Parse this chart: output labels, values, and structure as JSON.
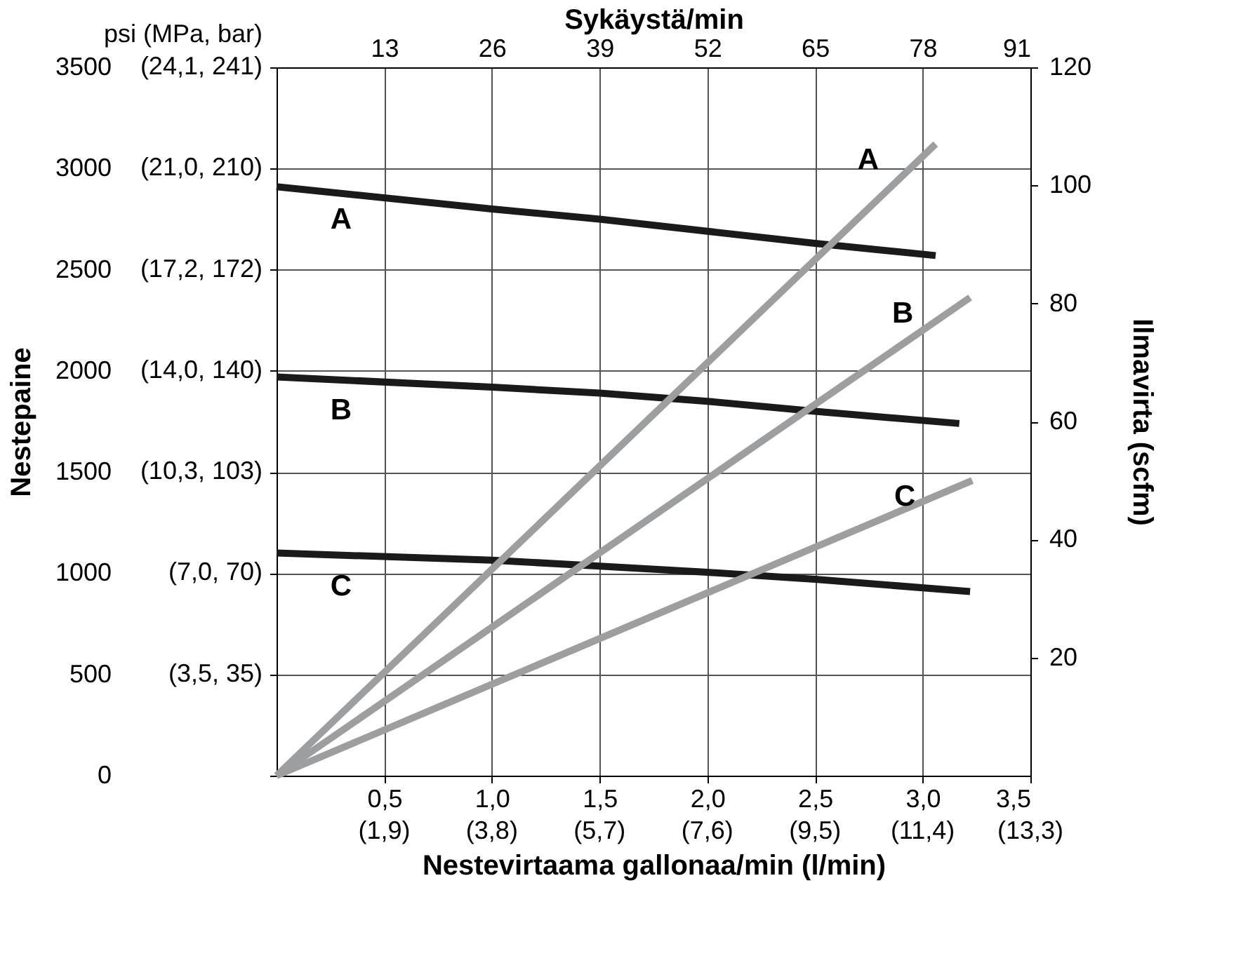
{
  "chart_data": {
    "type": "line",
    "xlabel": "Nestevirtaama gallonaa/min (l/min)",
    "ylabel": "Nestepaine",
    "y2label": "Ilmavirta (scfm)",
    "x2label": "Sykäystä/min",
    "annotations": [
      "psi (MPa, bar)",
      "(3,5, 35)",
      "(7,0, 70)",
      "(10,3, 103)",
      "(14,0, 140)",
      "(17,2, 172)",
      "(21,0, 210)",
      "(24,1, 241)",
      "(1,9)",
      "(3,8)",
      "(5,7)",
      "(7,6)",
      "(9,5)",
      "(11,4)",
      "(13,3)"
    ],
    "xlim": [
      0,
      3.5
    ],
    "xticks": [
      {
        "value": 0.5,
        "label": "0,5"
      },
      {
        "value": 1.0,
        "label": "1,0"
      },
      {
        "value": 1.5,
        "label": "1,5"
      },
      {
        "value": 2.0,
        "label": "2,0"
      },
      {
        "value": 2.5,
        "label": "2,5"
      },
      {
        "value": 3.0,
        "label": "3,0"
      },
      {
        "value": 3.5,
        "label": "3,5"
      }
    ],
    "x2lim": [
      0,
      91
    ],
    "x2ticks": [
      13,
      26,
      39,
      52,
      65,
      78,
      91
    ],
    "ylim": [
      0,
      3500
    ],
    "yticks": [
      0,
      500,
      1000,
      1500,
      2000,
      2500,
      3000,
      3500
    ],
    "y2lim": [
      0,
      120
    ],
    "y2ticks": [
      20,
      40,
      60,
      80,
      100,
      120
    ],
    "grid": true,
    "legend": false,
    "marker": "none",
    "line_style": "solid",
    "series": [
      {
        "name": "A",
        "color": "#1a1a1a",
        "x": [
          0,
          1.0,
          1.5,
          2.0,
          2.5,
          3.06
        ],
        "values": [
          2910,
          2800,
          2750,
          2690,
          2630,
          2570
        ]
      },
      {
        "name": "B",
        "color": "#1a1a1a",
        "x": [
          0,
          1.0,
          1.5,
          2.0,
          2.5,
          3.17
        ],
        "values": [
          1970,
          1920,
          1890,
          1850,
          1800,
          1740
        ]
      },
      {
        "name": "C",
        "color": "#1a1a1a",
        "x": [
          0,
          1.0,
          1.5,
          2.0,
          2.5,
          3.22
        ],
        "values": [
          1100,
          1065,
          1035,
          1005,
          970,
          910
        ]
      },
      {
        "name": "A",
        "color": "#9d9ea0",
        "axis": "y2",
        "x": [
          0,
          3.06
        ],
        "values": [
          0,
          107
        ]
      },
      {
        "name": "B",
        "color": "#9d9ea0",
        "axis": "y2",
        "x": [
          0,
          3.22
        ],
        "values": [
          0,
          81
        ]
      },
      {
        "name": "C",
        "color": "#9d9ea0",
        "axis": "y2",
        "x": [
          0,
          3.23
        ],
        "values": [
          0,
          50
        ]
      }
    ]
  }
}
